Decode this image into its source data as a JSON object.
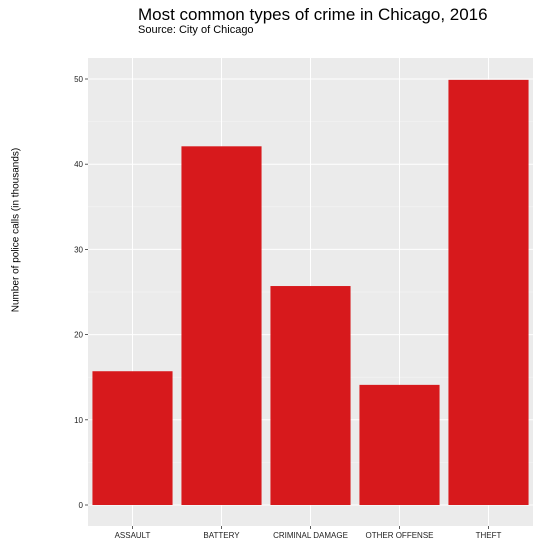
{
  "chart_data": {
    "type": "bar",
    "title": "Most common types of crime in Chicago, 2016",
    "subtitle": "Source: City of Chicago",
    "xlabel": "",
    "ylabel": "Number of police calls (in thousands)",
    "categories": [
      "ASSAULT",
      "BATTERY",
      "CRIMINAL DAMAGE",
      "OTHER OFFENSE",
      "THEFT"
    ],
    "values": [
      15.7,
      42.1,
      25.7,
      14.1,
      49.9
    ],
    "ylim": [
      0,
      52.5
    ],
    "yticks": [
      0,
      10,
      20,
      30,
      40,
      50
    ],
    "grid": true,
    "bar_color": "#d7191c",
    "panel_background": "#ebebeb",
    "grid_color": "#ffffff"
  }
}
